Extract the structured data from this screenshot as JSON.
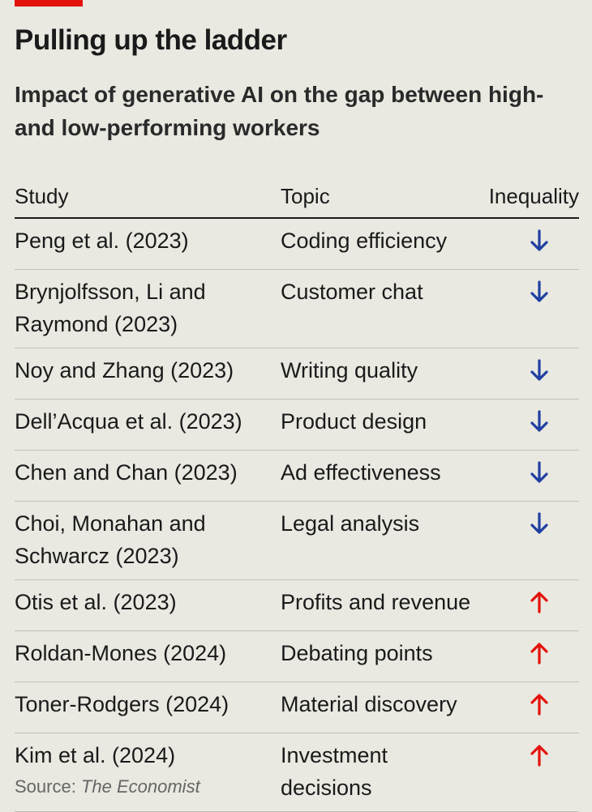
{
  "chart_data": {
    "type": "table",
    "title": "Pulling up the ladder",
    "subtitle": "Impact of generative AI on the gap between high- and low-performing workers",
    "columns": [
      "Study",
      "Topic",
      "Inequality"
    ],
    "rows": [
      {
        "study": "Peng et al. (2023)",
        "topic": "Coding efficiency",
        "inequality": "down"
      },
      {
        "study": "Brynjolfsson, Li and Raymond (2023)",
        "topic": "Customer chat",
        "inequality": "down"
      },
      {
        "study": "Noy and Zhang (2023)",
        "topic": "Writing quality",
        "inequality": "down"
      },
      {
        "study": "Dell’Acqua et al. (2023)",
        "topic": "Product design",
        "inequality": "down"
      },
      {
        "study": "Chen and Chan (2023)",
        "topic": "Ad effectiveness",
        "inequality": "down"
      },
      {
        "study": "Choi, Monahan and Schwarcz (2023)",
        "topic": "Legal analysis",
        "inequality": "down"
      },
      {
        "study": "Otis et al. (2023)",
        "topic": "Profits and revenue",
        "inequality": "up"
      },
      {
        "study": "Roldan-Mones (2024)",
        "topic": "Debating points",
        "inequality": "up"
      },
      {
        "study": "Toner-Rodgers (2024)",
        "topic": "Material discovery",
        "inequality": "up"
      },
      {
        "study": "Kim et al. (2024)",
        "topic": "Investment decisions",
        "inequality": "up"
      }
    ]
  },
  "source": {
    "label": "Source:",
    "name": "The Economist"
  },
  "colors": {
    "down": "#1f3fa0",
    "up": "#e3120b",
    "brand": "#e3120b"
  }
}
